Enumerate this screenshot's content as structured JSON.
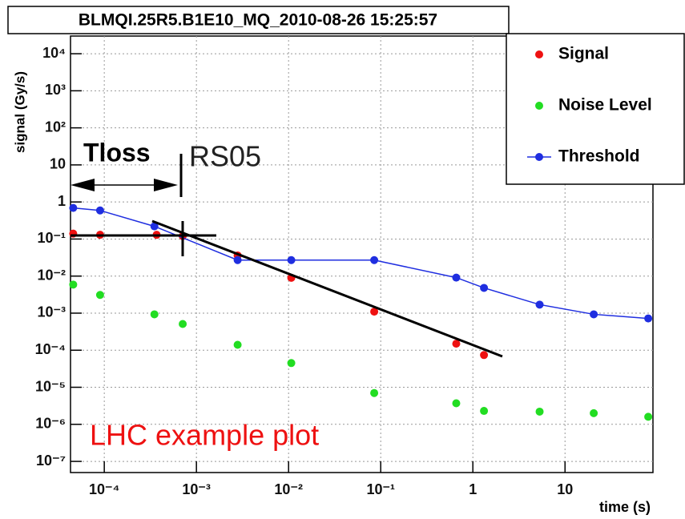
{
  "chart_data": {
    "type": "scatter",
    "title": "BLMQI.25R5.B1E10_MQ_2010-08-26 15:25:57",
    "x_label": "time (s)",
    "y_label": "signal (Gy/s)",
    "log_x": true,
    "log_y": true,
    "grid": true,
    "legend": "upper right",
    "xlim": [
      4.3e-05,
      90
    ],
    "ylim": [
      5e-08,
      30000
    ],
    "xticks": [
      {
        "value": 0.0001,
        "label": "10⁻⁴"
      },
      {
        "value": 0.001,
        "label": "10⁻³"
      },
      {
        "value": 0.01,
        "label": "10⁻²"
      },
      {
        "value": 0.1,
        "label": "10⁻¹"
      },
      1,
      10
    ],
    "yticks": [
      {
        "value": 1e-07,
        "label": "10⁻⁷"
      },
      {
        "value": 1e-06,
        "label": "10⁻⁶"
      },
      {
        "value": 1e-05,
        "label": "10⁻⁵"
      },
      {
        "value": 0.0001,
        "label": "10⁻⁴"
      },
      {
        "value": 0.001,
        "label": "10⁻³"
      },
      {
        "value": 0.01,
        "label": "10⁻²"
      },
      {
        "value": 0.1,
        "label": "10⁻¹"
      },
      1,
      10,
      {
        "value": 100,
        "label": "10²"
      },
      {
        "value": 1000,
        "label": "10³"
      },
      {
        "value": 10000,
        "label": "10⁴"
      }
    ],
    "series": [
      {
        "name": "Signal",
        "color": "#ee1111",
        "style": "markers",
        "x": [
          4.6e-05,
          9e-05,
          0.00037,
          0.00071,
          0.0028,
          0.0107,
          0.085,
          0.66,
          1.32
        ],
        "values": [
          0.14,
          0.13,
          0.13,
          0.12,
          0.036,
          0.009,
          0.0011,
          0.00015,
          7.4e-05
        ]
      },
      {
        "name": "Noise Level",
        "color": "#22dd22",
        "style": "markers",
        "x": [
          4.6e-05,
          9e-05,
          0.00035,
          0.00071,
          0.0028,
          0.0107,
          0.085,
          0.66,
          1.32,
          5.3,
          20.5,
          80
        ],
        "values": [
          0.0059,
          0.0031,
          0.00093,
          0.00051,
          0.00014,
          4.5e-05,
          7e-06,
          3.7e-06,
          2.3e-06,
          2.2e-06,
          2e-06,
          1.6e-06
        ]
      },
      {
        "name": "Threshold",
        "color": "#1f2ee0",
        "style": "line+markers",
        "x": [
          4.6e-05,
          9e-05,
          0.00035,
          0.0028,
          0.0107,
          0.085,
          0.66,
          1.32,
          5.3,
          20.5,
          80
        ],
        "values": [
          0.69,
          0.59,
          0.22,
          0.027,
          0.027,
          0.027,
          0.0091,
          0.0048,
          0.0017,
          0.00093,
          0.00072
        ]
      }
    ],
    "annotations": [
      "Tloss",
      "RS05",
      "LHC example plot"
    ]
  }
}
